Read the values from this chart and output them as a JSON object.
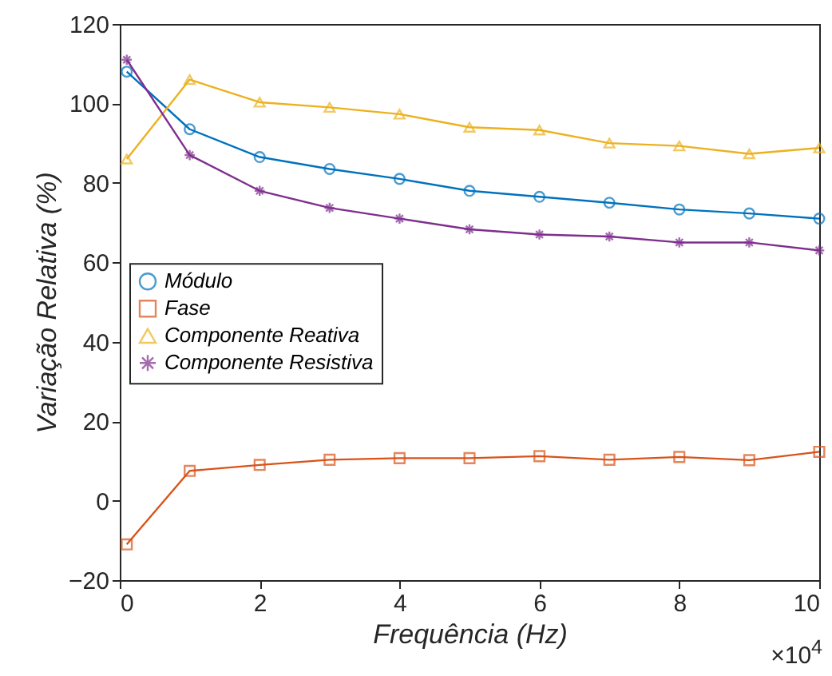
{
  "chart_data": {
    "type": "line",
    "xlabel": "Frequência (Hz)",
    "ylabel": "Variação Relativa (%)",
    "x": [
      0.1,
      1,
      2,
      3,
      4,
      5,
      6,
      7,
      8,
      9,
      10
    ],
    "series": [
      {
        "name": "Módulo",
        "color": "#0072bd",
        "marker": "circle",
        "values": [
          108,
          93.5,
          86.5,
          83.5,
          81,
          78,
          76.5,
          75,
          73.3,
          72.3,
          71
        ]
      },
      {
        "name": "Fase",
        "color": "#d95319",
        "marker": "square",
        "values": [
          -11,
          7.5,
          9,
          10.3,
          10.7,
          10.7,
          11.2,
          10.3,
          11,
          10.2,
          12.3
        ]
      },
      {
        "name": "Componente Reativa",
        "color": "#edb120",
        "marker": "triangle",
        "values": [
          86,
          106,
          100.3,
          99,
          97.3,
          94,
          93.3,
          90,
          89.3,
          87.3,
          88.8
        ]
      },
      {
        "name": "Componente Resistiva",
        "color": "#7e2f8e",
        "marker": "cross",
        "values": [
          111,
          87,
          78,
          73.7,
          71,
          68.3,
          67,
          66.5,
          65,
          65,
          63
        ]
      }
    ],
    "xlim": [
      0,
      10
    ],
    "xticks": [
      0,
      2,
      4,
      6,
      8,
      10
    ],
    "ylim": [
      -20,
      120
    ],
    "yticks": [
      -20,
      0,
      20,
      40,
      60,
      80,
      100,
      120
    ],
    "grid": false,
    "legend": "left",
    "line_style": "solid",
    "annotations": [
      "×10$^{4}$"
    ]
  }
}
